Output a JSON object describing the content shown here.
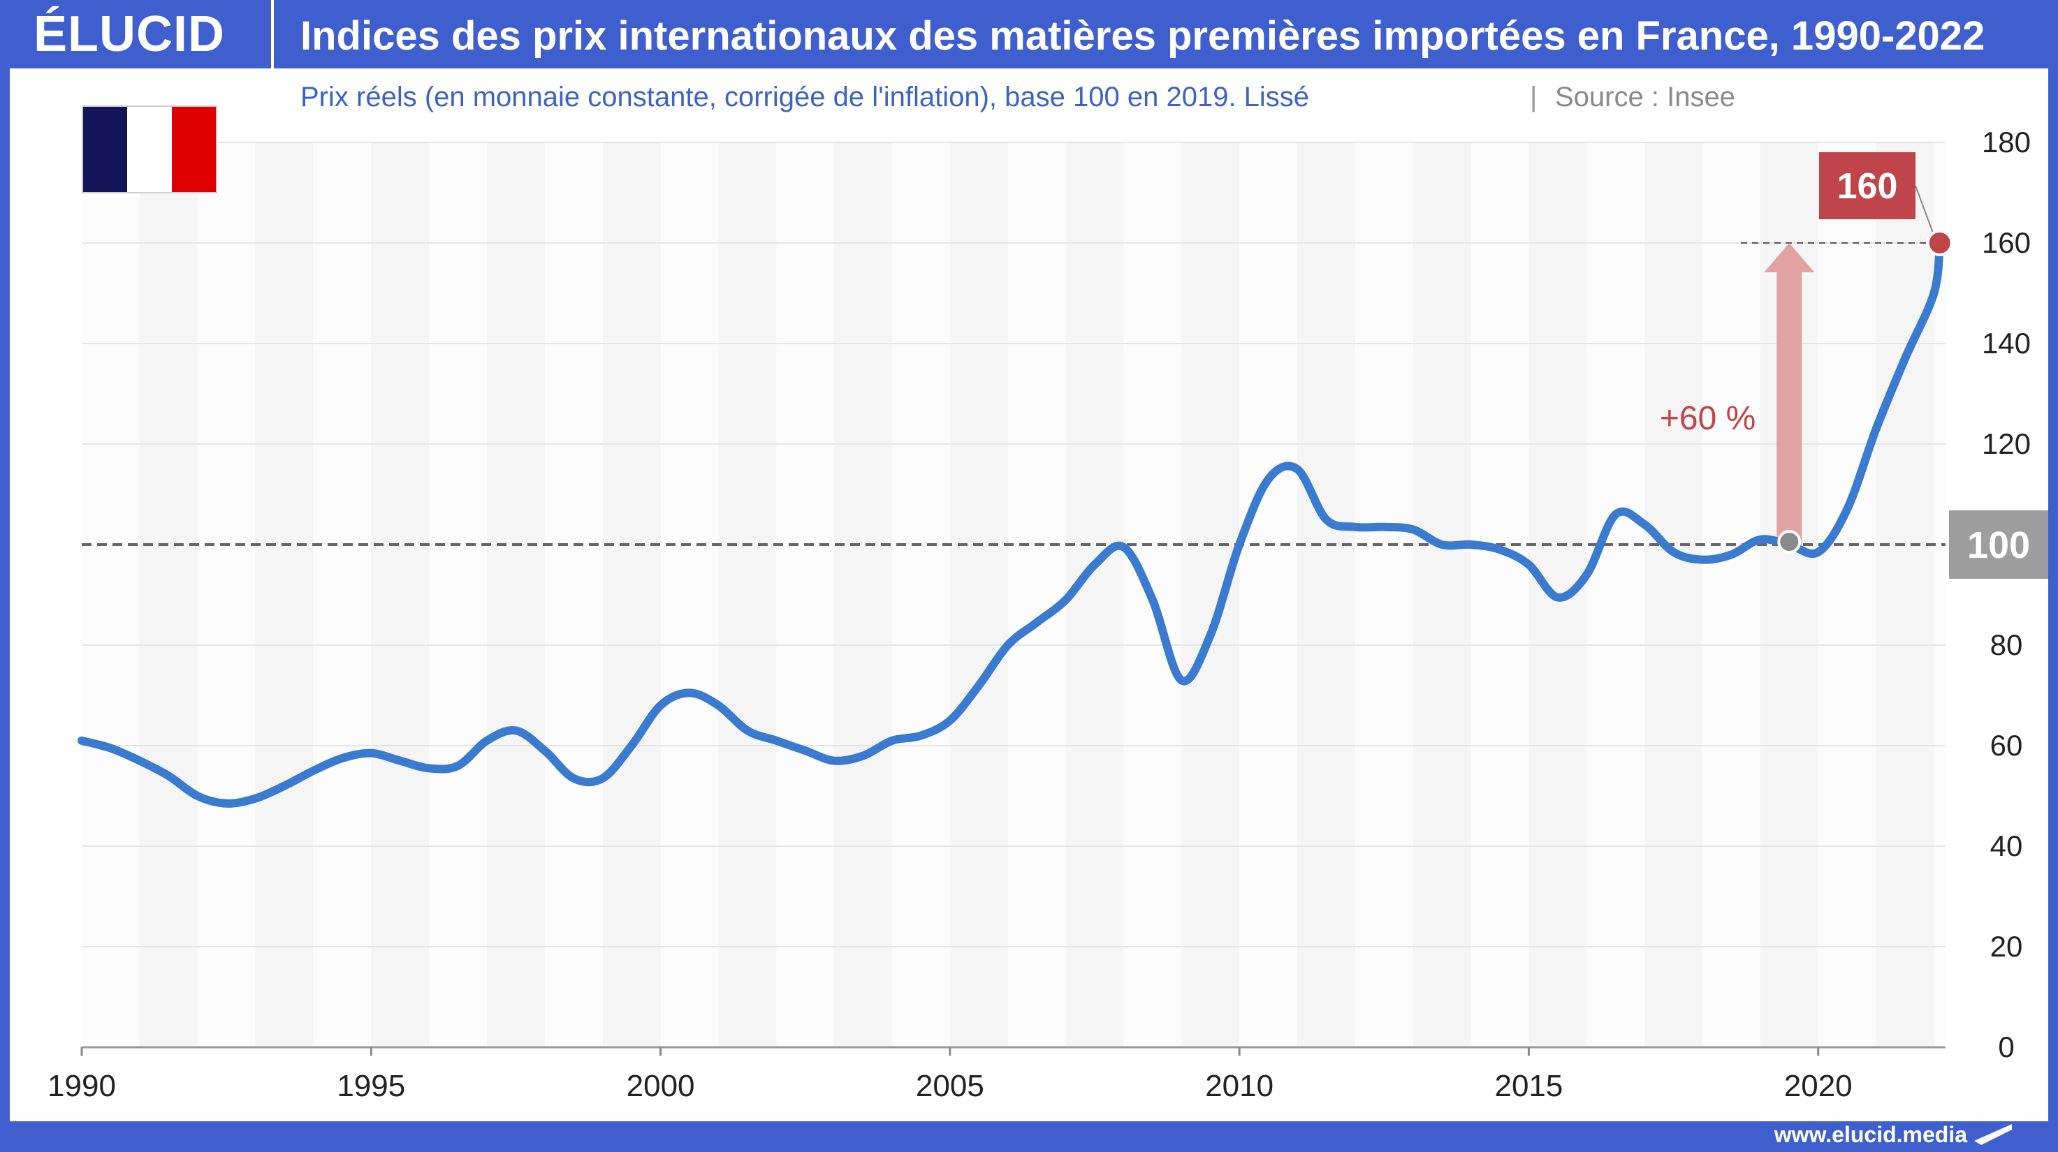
{
  "header": {
    "logo": "ÉLUCID",
    "title": "Indices des prix internationaux des matières premières importées en France, 1990-2022"
  },
  "subtitle": {
    "main": "Prix réels (en monnaie constante, corrigée de l'inflation), base 100 en 2019. Lissé",
    "separator": "|",
    "source": "Source : Insee"
  },
  "footer": {
    "url": "www.elucid.media"
  },
  "flag": {
    "colors": [
      "#14145a",
      "#ffffff",
      "#e00000"
    ]
  },
  "colors": {
    "line": "#3a7bd0",
    "accent_red": "#c0454a",
    "arrow": "#e2a2a2",
    "reference_box": "#9e9e9e",
    "brand_blue": "#3f5fcf"
  },
  "annotations": {
    "end_value_label": "160",
    "reference_label": "100",
    "change_label": "+60 %",
    "reference_value": 100,
    "arrow_from_year": 2019.5,
    "arrow_from_value": 100,
    "arrow_to_value": 160,
    "end_point_year": 2022.1,
    "end_point_value": 160
  },
  "chart_data": {
    "type": "line",
    "title": "Indices des prix internationaux des matières premières importées en France, 1990-2022",
    "subtitle": "Prix réels (en monnaie constante, corrigée de l'inflation), base 100 en 2019. Lissé",
    "xlim": [
      1990,
      2022.2
    ],
    "ylim": [
      0,
      180
    ],
    "x_ticks": [
      1990,
      1995,
      2000,
      2005,
      2010,
      2015,
      2020
    ],
    "y_ticks": [
      0,
      20,
      40,
      60,
      80,
      100,
      120,
      140,
      160,
      180
    ],
    "y_axis_position": "right",
    "grid": "horizontal",
    "x": [
      1990,
      1990.5,
      1991,
      1991.5,
      1992,
      1992.5,
      1993,
      1993.5,
      1994,
      1994.5,
      1995,
      1995.5,
      1996,
      1996.5,
      1997,
      1997.5,
      1998,
      1998.5,
      1999,
      1999.5,
      2000,
      2000.5,
      2001,
      2001.5,
      2002,
      2002.5,
      2003,
      2003.5,
      2004,
      2004.5,
      2005,
      2005.5,
      2006,
      2006.5,
      2007,
      2007.5,
      2008,
      2008.5,
      2009,
      2009.5,
      2010,
      2010.5,
      2011,
      2011.5,
      2012,
      2012.5,
      2013,
      2013.5,
      2014,
      2014.5,
      2015,
      2015.5,
      2016,
      2016.5,
      2017,
      2017.5,
      2018,
      2018.5,
      2019,
      2019.5,
      2020,
      2020.5,
      2021,
      2021.5,
      2022,
      2022.1
    ],
    "series": [
      {
        "values": [
          61,
          59.5,
          57,
          54,
          50,
          48.5,
          49.5,
          52,
          55,
          57.5,
          58.5,
          57,
          55.5,
          56,
          61,
          63,
          59,
          53.5,
          53.5,
          60,
          68,
          70.5,
          68,
          63,
          61,
          59,
          57,
          58,
          61,
          62,
          65,
          72,
          80,
          84.5,
          89,
          96,
          99.5,
          89,
          73,
          82,
          100,
          113,
          115,
          105,
          103.5,
          103.5,
          103,
          100,
          100,
          99,
          96,
          89.5,
          94,
          106,
          104,
          98.5,
          97,
          98,
          101,
          100,
          98.5,
          107,
          123,
          137,
          150,
          160
        ]
      }
    ]
  }
}
